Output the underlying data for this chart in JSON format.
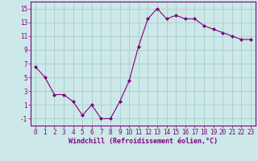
{
  "x": [
    0,
    1,
    2,
    3,
    4,
    5,
    6,
    7,
    8,
    9,
    10,
    11,
    12,
    13,
    14,
    15,
    16,
    17,
    18,
    19,
    20,
    21,
    22,
    23
  ],
  "y": [
    6.5,
    5.0,
    2.5,
    2.5,
    1.5,
    -0.5,
    1.0,
    -1.0,
    -1.0,
    1.5,
    4.5,
    9.5,
    13.5,
    15.0,
    13.5,
    14.0,
    13.5,
    13.5,
    12.5,
    12.0,
    11.5,
    11.0,
    10.5,
    10.5
  ],
  "line_color": "#800080",
  "marker": "D",
  "marker_size": 2.0,
  "bg_color": "#cce8e8",
  "grid_color": "#aacccc",
  "xlabel": "Windchill (Refroidissement éolien,°C)",
  "xlabel_color": "#800080",
  "tick_color": "#800080",
  "spine_color": "#800080",
  "ylim": [
    -2,
    16
  ],
  "xlim": [
    -0.5,
    23.5
  ],
  "yticks": [
    -1,
    1,
    3,
    5,
    7,
    9,
    11,
    13,
    15
  ],
  "xticks": [
    0,
    1,
    2,
    3,
    4,
    5,
    6,
    7,
    8,
    9,
    10,
    11,
    12,
    13,
    14,
    15,
    16,
    17,
    18,
    19,
    20,
    21,
    22,
    23
  ],
  "tick_fontsize": 5.5,
  "xlabel_fontsize": 6.0
}
